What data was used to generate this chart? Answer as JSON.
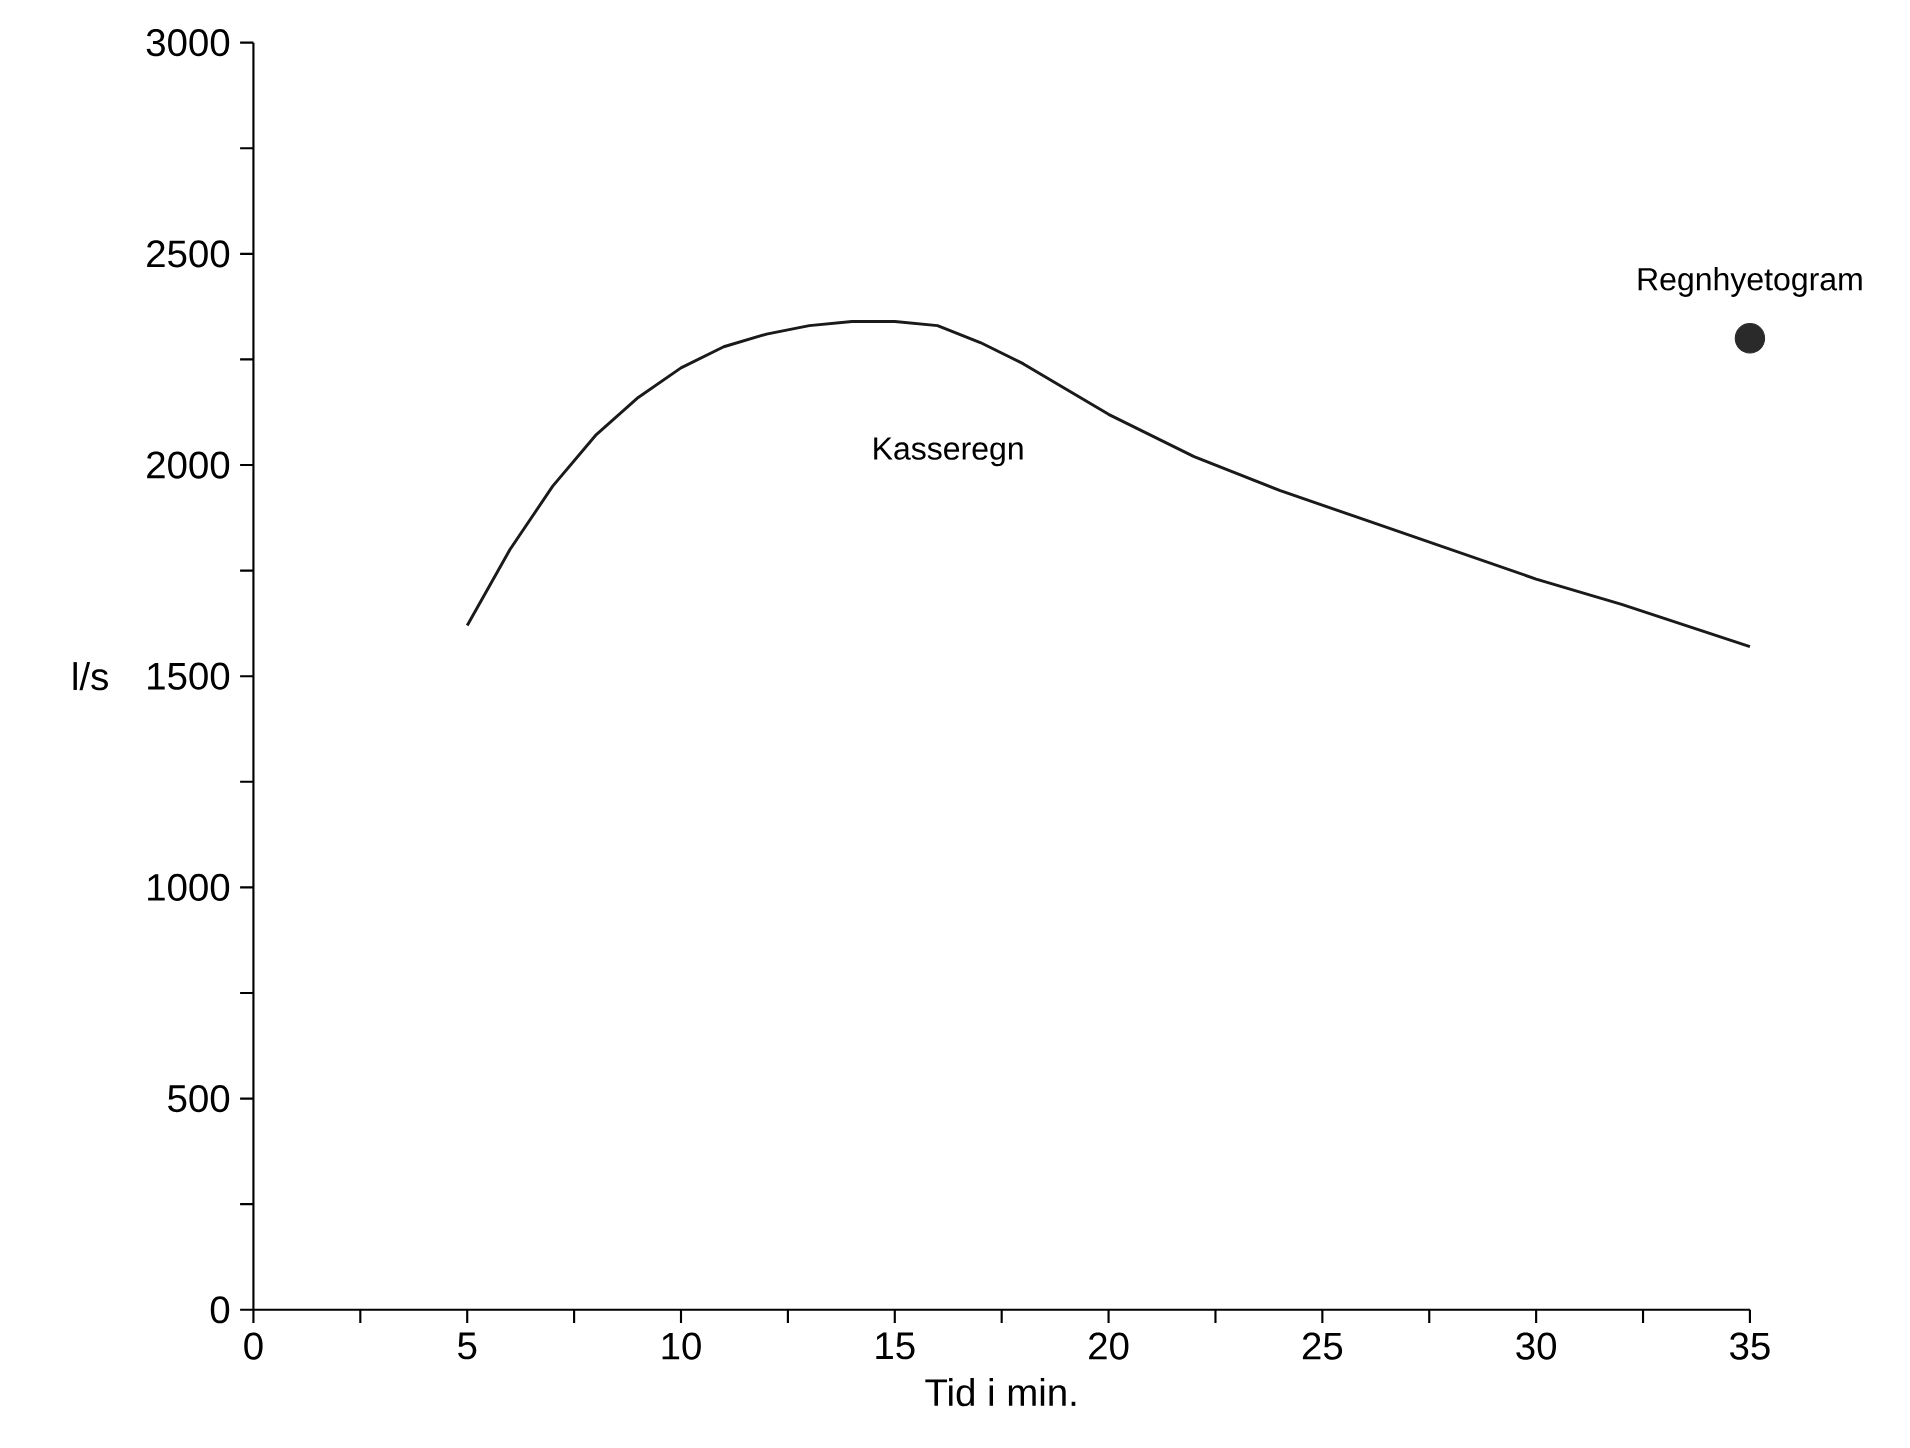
{
  "chart_data": {
    "type": "line",
    "xlabel": "Tid i min.",
    "ylabel": "l/s",
    "xlim": [
      0,
      35
    ],
    "ylim": [
      0,
      3000
    ],
    "xticks": [
      0,
      {
        "value": 2.5,
        "label": null
      },
      5,
      {
        "value": 7.5,
        "label": null
      },
      10,
      {
        "value": 12.5,
        "label": null
      },
      15,
      {
        "value": 17.5,
        "label": null
      },
      20,
      {
        "value": 22.5,
        "label": null
      },
      25,
      {
        "value": 27.5,
        "label": null
      },
      30,
      {
        "value": 32.5,
        "label": null
      },
      35
    ],
    "yticks": [
      0,
      {
        "value": 250,
        "label": null
      },
      500,
      {
        "value": 750,
        "label": null
      },
      1000,
      {
        "value": 1250,
        "label": null
      },
      1500,
      {
        "value": 1750,
        "label": null
      },
      2000,
      {
        "value": 2250,
        "label": null
      },
      2500,
      {
        "value": 2750,
        "label": null
      },
      3000
    ],
    "legend": false,
    "grid": false,
    "series": [
      {
        "name": "Kasseregn",
        "color": "#1a1a1a",
        "x": [
          5,
          6,
          7,
          8,
          9,
          10,
          11,
          12,
          13,
          14,
          15,
          16,
          17,
          18,
          19,
          20,
          22,
          24,
          26,
          28,
          30,
          32,
          35
        ],
        "values": [
          1620,
          1800,
          1950,
          2070,
          2160,
          2230,
          2280,
          2310,
          2330,
          2340,
          2340,
          2330,
          2290,
          2240,
          2180,
          2120,
          2020,
          1940,
          1870,
          1800,
          1730,
          1670,
          1570
        ]
      },
      {
        "name": "Regnhyetogram",
        "type": "scatter",
        "marker": "circle",
        "color": "#2a2a2a",
        "x": [
          35
        ],
        "values": [
          2300
        ]
      }
    ]
  }
}
